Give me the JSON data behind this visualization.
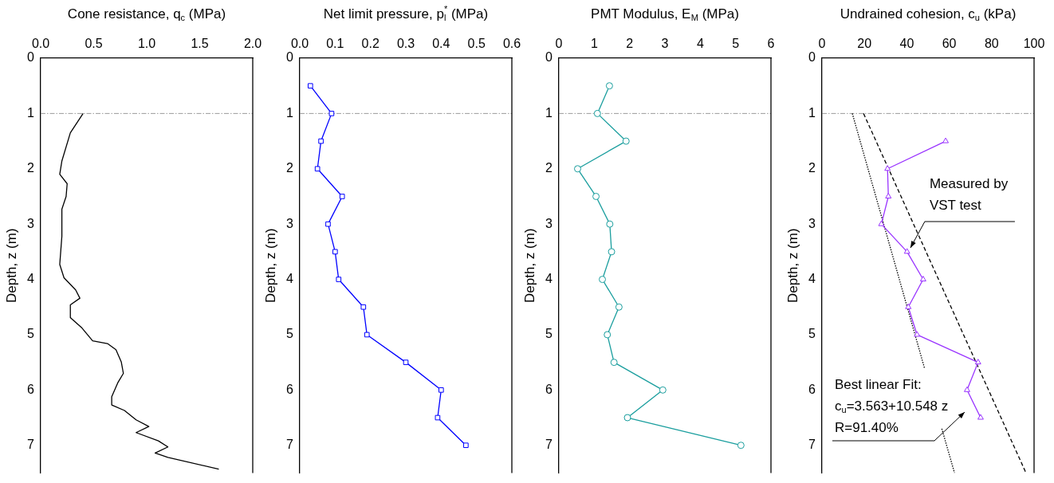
{
  "chart_data": [
    {
      "type": "line",
      "orientation": "horizontal",
      "xlabel": "Cone resistance, q$_{c}$ (MPa)",
      "ylabel": "Depth, z (m)",
      "xlim": [
        0,
        2
      ],
      "xticks": [
        {
          "value": 0,
          "label": "0.0"
        },
        {
          "value": 0.5,
          "label": "0.5"
        },
        {
          "value": 1,
          "label": "1.0"
        },
        {
          "value": 1.5,
          "label": "1.5"
        },
        {
          "value": 2,
          "label": "2.0"
        }
      ],
      "ylim": [
        7.5,
        0
      ],
      "yticks": [
        0,
        1,
        2,
        3,
        4,
        5,
        6,
        7
      ],
      "ref_lines": [
        {
          "axis": "y",
          "value": 1,
          "color": "#808080",
          "line_style": "dashdot"
        }
      ],
      "series": [
        {
          "color": "#000000",
          "marker": "none",
          "x": [
            1.0,
            1.35,
            1.86,
            2.1,
            2.27,
            2.5,
            2.73,
            3.22,
            3.73,
            3.97,
            4.19,
            4.34,
            4.46,
            4.69,
            4.88,
            5.11,
            5.16,
            5.27,
            5.49,
            5.7,
            5.86,
            6.12,
            6.27,
            6.37,
            6.54,
            6.66,
            6.77,
            6.92,
            7.03,
            7.14,
            7.22,
            7.43
          ],
          "values": [
            0.4,
            0.28,
            0.2,
            0.18,
            0.25,
            0.24,
            0.2,
            0.2,
            0.18,
            0.22,
            0.33,
            0.37,
            0.28,
            0.28,
            0.39,
            0.49,
            0.63,
            0.71,
            0.76,
            0.78,
            0.73,
            0.67,
            0.67,
            0.79,
            0.9,
            1.02,
            0.9,
            1.11,
            1.2,
            1.08,
            1.2,
            1.68
          ]
        }
      ]
    },
    {
      "type": "line",
      "orientation": "horizontal",
      "xlabel": "Net limit pressure, p$_{l}$$^{*}$ (MPa)",
      "ylabel": "Depth, z (m)",
      "xlim": [
        0,
        0.6
      ],
      "xticks": [
        {
          "value": 0,
          "label": "0.0"
        },
        0.1,
        0.2,
        0.3,
        0.4,
        0.5,
        0.6
      ],
      "ylim": [
        7.5,
        0
      ],
      "yticks": [
        0,
        1,
        2,
        3,
        4,
        5,
        6,
        7
      ],
      "ref_lines": [
        {
          "axis": "y",
          "value": 1,
          "color": "#808080",
          "line_style": "dashdot"
        }
      ],
      "series": [
        {
          "color": "#0000ff",
          "marker": "square",
          "x": [
            0.5,
            1,
            1.5,
            2,
            2.5,
            3,
            3.5,
            4,
            4.5,
            5,
            5.5,
            6,
            6.5,
            7
          ],
          "values": [
            0.03,
            0.09,
            0.06,
            0.05,
            0.12,
            0.08,
            0.1,
            0.11,
            0.18,
            0.19,
            0.3,
            0.4,
            0.39,
            0.47
          ]
        }
      ]
    },
    {
      "type": "line",
      "orientation": "horizontal",
      "xlabel": "PMT Modulus, E$_{M}$ (MPa)",
      "ylabel": "Depth, z (m)",
      "xlim": [
        0,
        6
      ],
      "xticks": [
        0,
        1,
        2,
        3,
        4,
        5,
        6
      ],
      "ylim": [
        7.5,
        0
      ],
      "yticks": [
        0,
        1,
        2,
        3,
        4,
        5,
        6,
        7
      ],
      "ref_lines": [
        {
          "axis": "y",
          "value": 1,
          "color": "#808080",
          "line_style": "dashdot"
        }
      ],
      "series": [
        {
          "color": "#1a9e9e",
          "marker": "circle",
          "x": [
            0.5,
            1,
            1.5,
            2,
            2.5,
            3,
            3.5,
            4,
            4.5,
            5,
            5.5,
            6,
            6.5,
            7
          ],
          "values": [
            1.43,
            1.09,
            1.9,
            0.53,
            1.05,
            1.44,
            1.49,
            1.23,
            1.7,
            1.37,
            1.56,
            2.94,
            1.94,
            5.15
          ]
        }
      ]
    },
    {
      "type": "line",
      "orientation": "horizontal",
      "xlabel": "Undrained cohesion, c$_{u}$ (kPa)",
      "ylabel": "Depth, z (m)",
      "xlim": [
        0,
        100
      ],
      "xticks": [
        0,
        20,
        40,
        60,
        80,
        100
      ],
      "ylim": [
        7.5,
        0
      ],
      "yticks": [
        0,
        1,
        2,
        3,
        4,
        5,
        6,
        7
      ],
      "ref_lines": [
        {
          "axis": "y",
          "value": 1,
          "color": "#808080",
          "line_style": "dashdot"
        }
      ],
      "annotations": [
        {
          "text": "Measured by\nVST test",
          "x": 41.7,
          "y": 3.43
        },
        "Best linear Fit:\nc$_{u}$=3.563+10.548 z\nR=91.40%"
      ],
      "series": [
        {
          "color": "#9933ff",
          "marker": "triangle",
          "x": [
            1.5,
            2,
            2.5,
            3,
            3.5,
            4,
            4.5,
            5,
            5.5,
            6,
            6.5
          ],
          "values": [
            58.3,
            30.9,
            31.3,
            28.0,
            40.1,
            47.7,
            40.7,
            44.8,
            73.6,
            68.4,
            74.8
          ]
        },
        {
          "color": "#000000",
          "marker": "none",
          "line_style": "dashed",
          "x": [
            1,
            7.5
          ],
          "values": [
            19.6,
            96.2
          ]
        },
        {
          "color": "#000000",
          "marker": "none",
          "line_style": "dotted",
          "x": [
            1,
            5.6,
            6.2,
            6.7,
            7.5
          ],
          "values": [
            14.3,
            48.3,
            null,
            56.5,
            62.5
          ]
        }
      ]
    }
  ]
}
